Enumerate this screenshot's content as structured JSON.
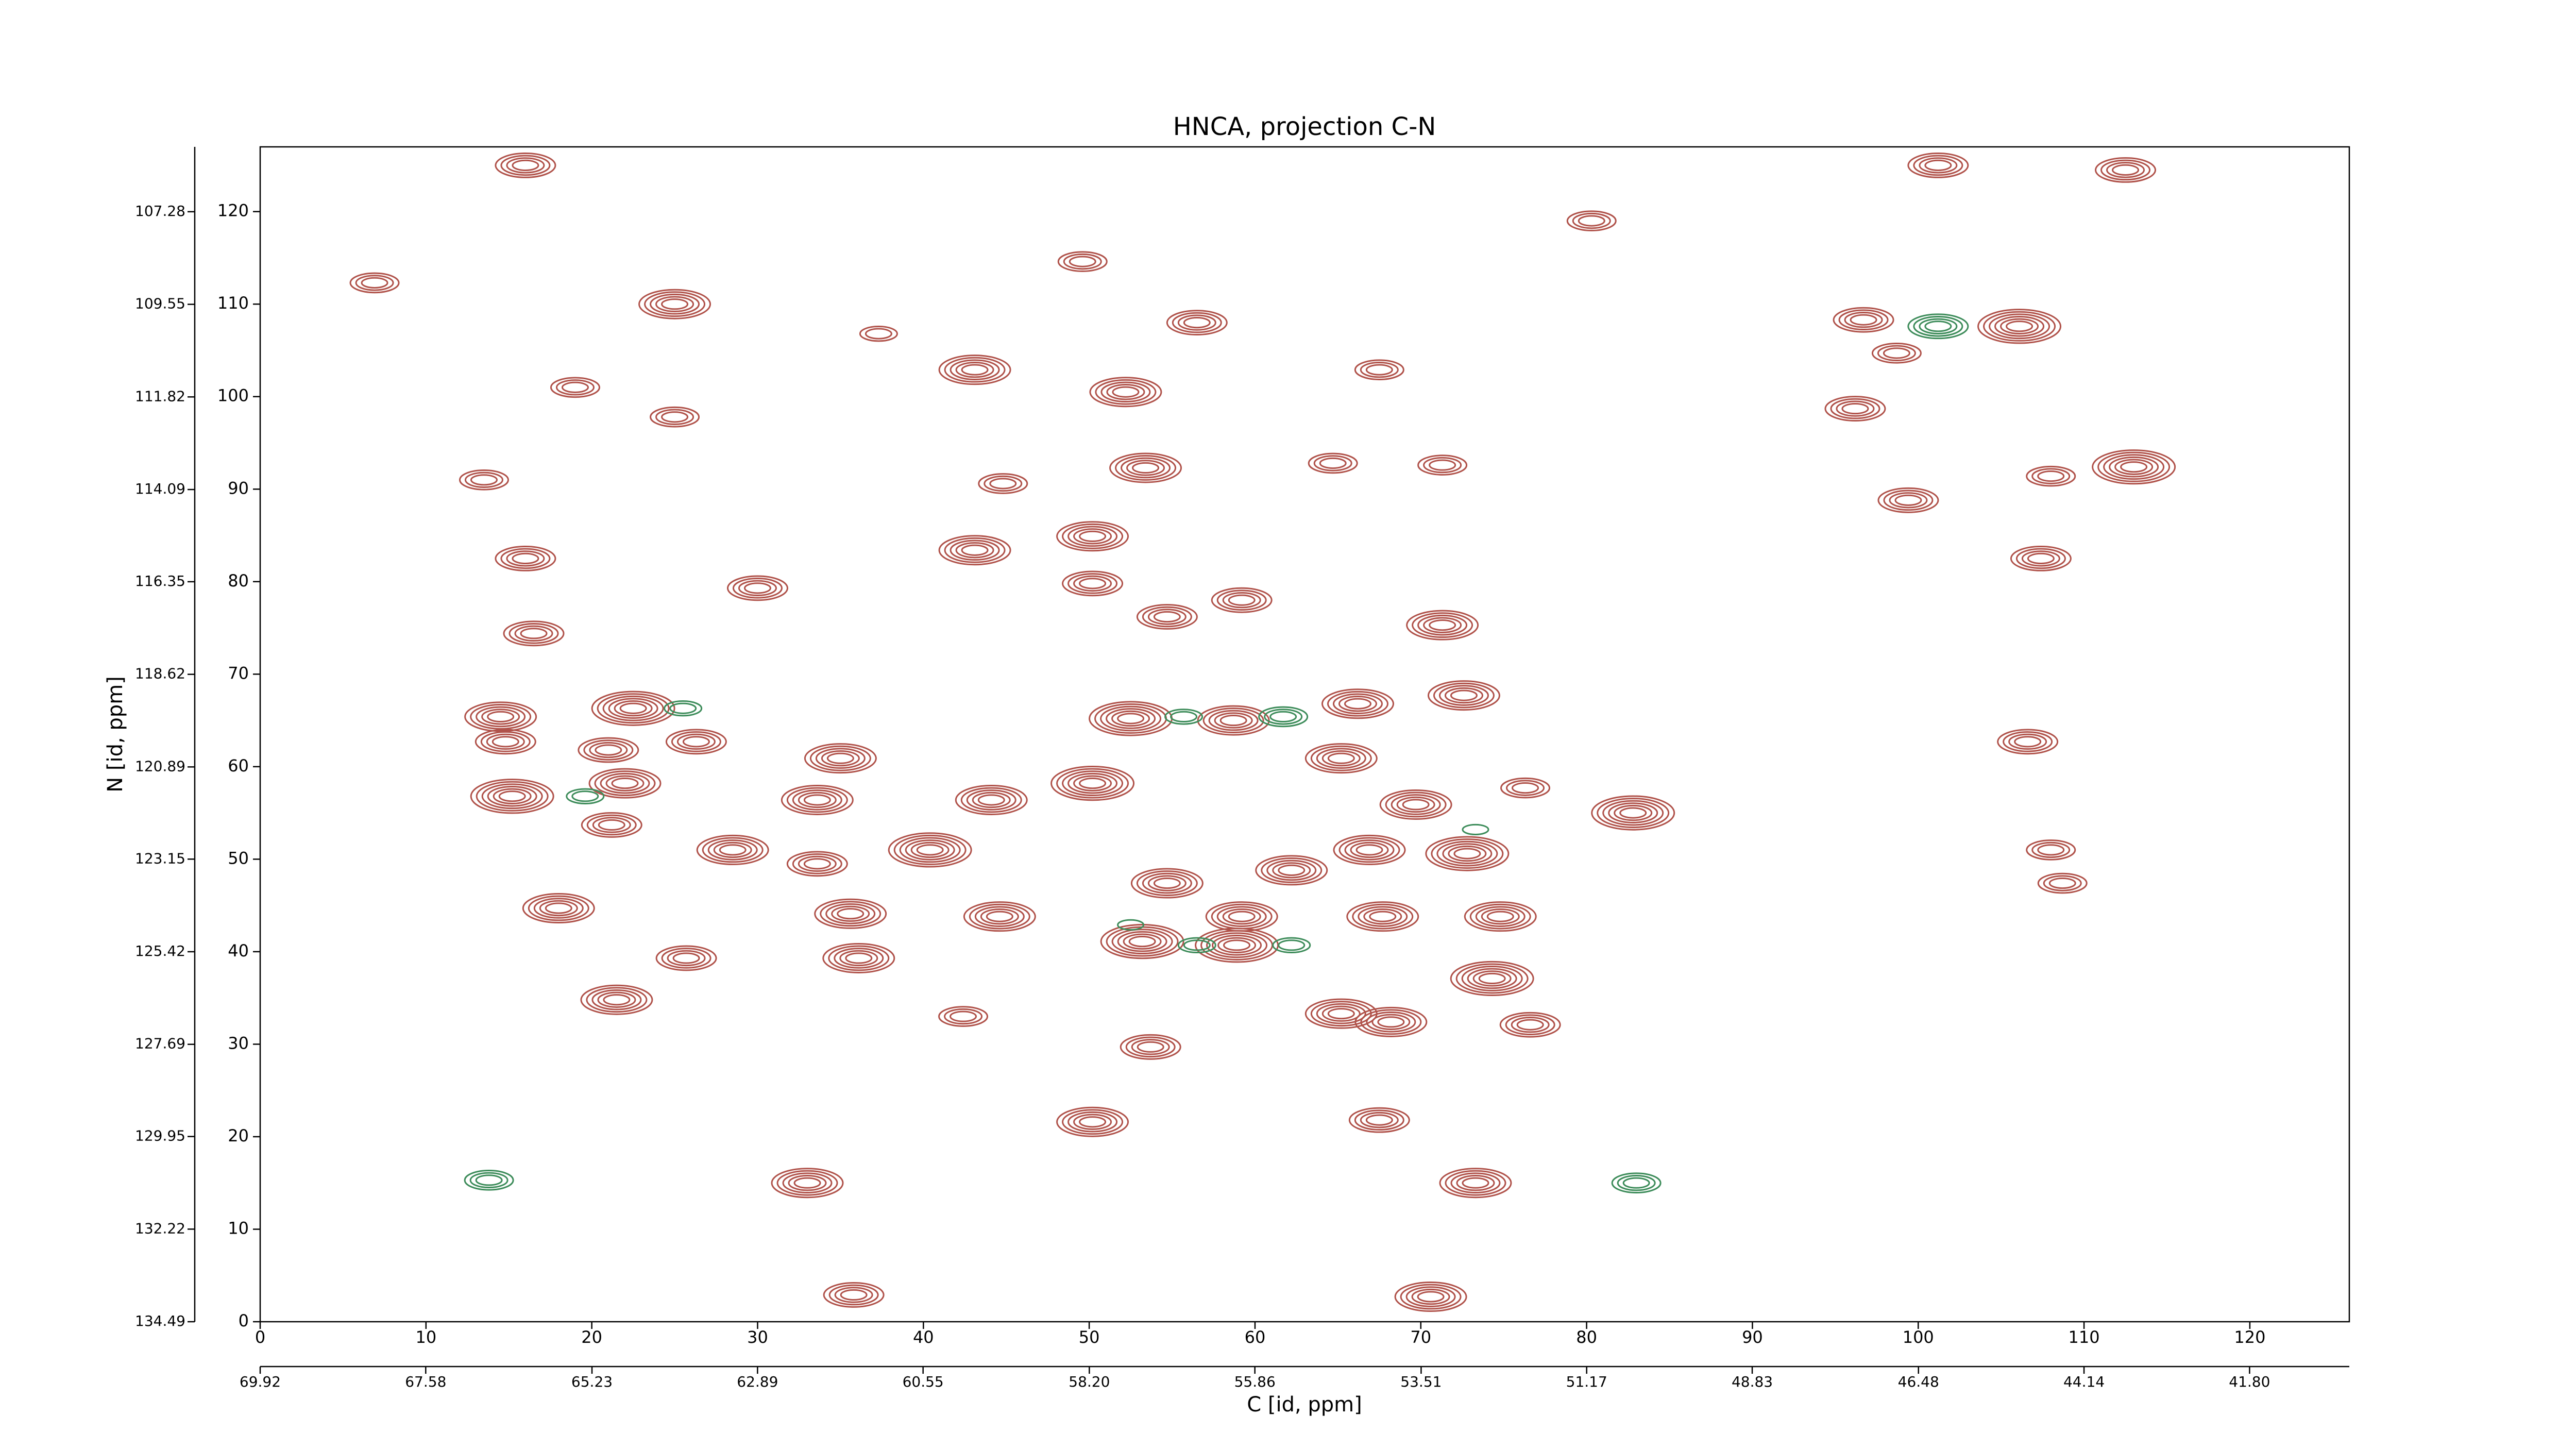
{
  "chart_data": {
    "type": "contour",
    "title": "HNCA, projection C-N",
    "xlabel": "C [id, ppm]",
    "ylabel": "N [id, ppm]",
    "xlim": [
      0,
      126
    ],
    "ylim": [
      0,
      127
    ],
    "xticks": [
      0,
      10,
      20,
      30,
      40,
      50,
      60,
      70,
      80,
      90,
      100,
      110,
      120
    ],
    "yticks": [
      0,
      10,
      20,
      30,
      40,
      50,
      60,
      70,
      80,
      90,
      100,
      110,
      120
    ],
    "x2lim": [
      69.92,
      40.39
    ],
    "x2ticks": [
      69.92,
      67.58,
      65.23,
      62.89,
      60.55,
      {
        "value": 58.2,
        "label": "58.20"
      },
      55.86,
      53.51,
      51.17,
      48.83,
      46.48,
      44.14,
      {
        "value": 41.8,
        "label": "41.80"
      }
    ],
    "y2lim": [
      134.49,
      105.69
    ],
    "y2ticks": [
      134.49,
      132.22,
      {
        "value": 129.95,
        "label": "129.95"
      },
      127.69,
      125.42,
      123.15,
      120.89,
      118.62,
      116.35,
      114.09,
      111.82,
      109.55,
      107.28
    ],
    "grid": false,
    "series": [
      {
        "color": "#b0524a",
        "x": [
          16,
          101.2,
          112.5,
          80.3,
          49.6,
          25,
          56.5,
          96.7,
          106.1,
          98.7,
          43.1,
          67.5,
          19,
          52.2,
          96.2,
          25,
          53.4,
          113,
          64.7,
          71.3,
          108,
          44.8,
          13.5,
          99.4,
          50.2,
          43.1,
          16,
          107.4,
          30,
          50.2,
          71.3,
          16.5,
          59.2,
          54.7,
          72.6,
          22.5,
          66.2,
          14.5,
          52.5,
          58.7,
          106.6,
          26.3,
          21,
          35,
          65.2,
          14.8,
          22,
          50.2,
          76.3,
          15.2,
          33.6,
          44.1,
          69.7,
          82.8,
          21.2,
          40.4,
          28.5,
          66.9,
          62.2,
          108,
          33.6,
          72.8,
          54.7,
          108.7,
          18,
          35.6,
          44.6,
          59.2,
          67.7,
          74.8,
          53.2,
          58.9,
          25.7,
          36.1,
          74.3,
          21.5,
          65.2,
          76.6,
          68.2,
          53.7,
          50.2,
          67.5,
          73.3,
          33,
          35.8,
          70.6,
          42.4,
          37.3,
          6.9
        ],
        "y": [
          125,
          125,
          124.5,
          119,
          114.6,
          110,
          108,
          108.3,
          107.6,
          104.7,
          102.9,
          102.9,
          101,
          100.5,
          98.7,
          97.8,
          92.3,
          92.4,
          92.8,
          92.6,
          91.4,
          90.6,
          91,
          88.8,
          84.9,
          83.4,
          82.5,
          82.5,
          79.3,
          79.8,
          75.3,
          74.4,
          78,
          76.2,
          67.7,
          66.3,
          66.8,
          65.4,
          65.2,
          65,
          62.7,
          62.7,
          61.8,
          60.9,
          60.9,
          62.7,
          58.2,
          58.2,
          57.7,
          56.8,
          56.4,
          56.4,
          55.9,
          55,
          53.7,
          51,
          51,
          51,
          48.8,
          51,
          49.5,
          50.6,
          47.4,
          47.4,
          44.7,
          44.1,
          43.8,
          43.8,
          43.8,
          43.8,
          41.1,
          40.7,
          39.3,
          39.3,
          37.1,
          34.8,
          33.3,
          32.1,
          32.4,
          29.7,
          21.6,
          21.8,
          15,
          15,
          2.9,
          2.7,
          33,
          106.8,
          112.3
        ],
        "values": [
          4,
          4,
          4,
          3,
          3,
          5,
          4,
          4,
          6,
          3,
          5,
          3,
          3,
          5,
          4,
          3,
          5,
          6,
          3,
          3,
          3,
          3,
          3,
          4,
          5,
          5,
          4,
          4,
          4,
          4,
          5,
          4,
          4,
          4,
          5,
          6,
          5,
          5,
          6,
          5,
          4,
          4,
          4,
          5,
          5,
          4,
          5,
          6,
          3,
          6,
          5,
          5,
          5,
          6,
          4,
          6,
          5,
          5,
          5,
          3,
          4,
          6,
          5,
          3,
          5,
          5,
          5,
          5,
          5,
          5,
          6,
          6,
          4,
          5,
          6,
          5,
          5,
          4,
          5,
          4,
          5,
          4,
          5,
          5,
          4,
          5,
          3,
          2,
          3
        ]
      },
      {
        "color": "#3d8c5a",
        "x": [
          101.2,
          13.8,
          25.5,
          61.7,
          55.7,
          62.2,
          56.5,
          83,
          73.3,
          19.6,
          52.5
        ],
        "y": [
          107.6,
          15.3,
          66.3,
          65.4,
          65.4,
          40.7,
          40.7,
          15,
          53.2,
          56.8,
          42.9
        ],
        "values": [
          4,
          3,
          2,
          3,
          2,
          2,
          2,
          3,
          1,
          2,
          1
        ]
      }
    ]
  }
}
